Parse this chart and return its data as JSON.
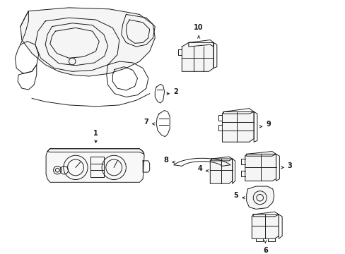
{
  "bg_color": "#ffffff",
  "line_color": "#1a1a1a",
  "fig_width": 4.89,
  "fig_height": 3.6,
  "dpi": 100,
  "lw": 0.7
}
